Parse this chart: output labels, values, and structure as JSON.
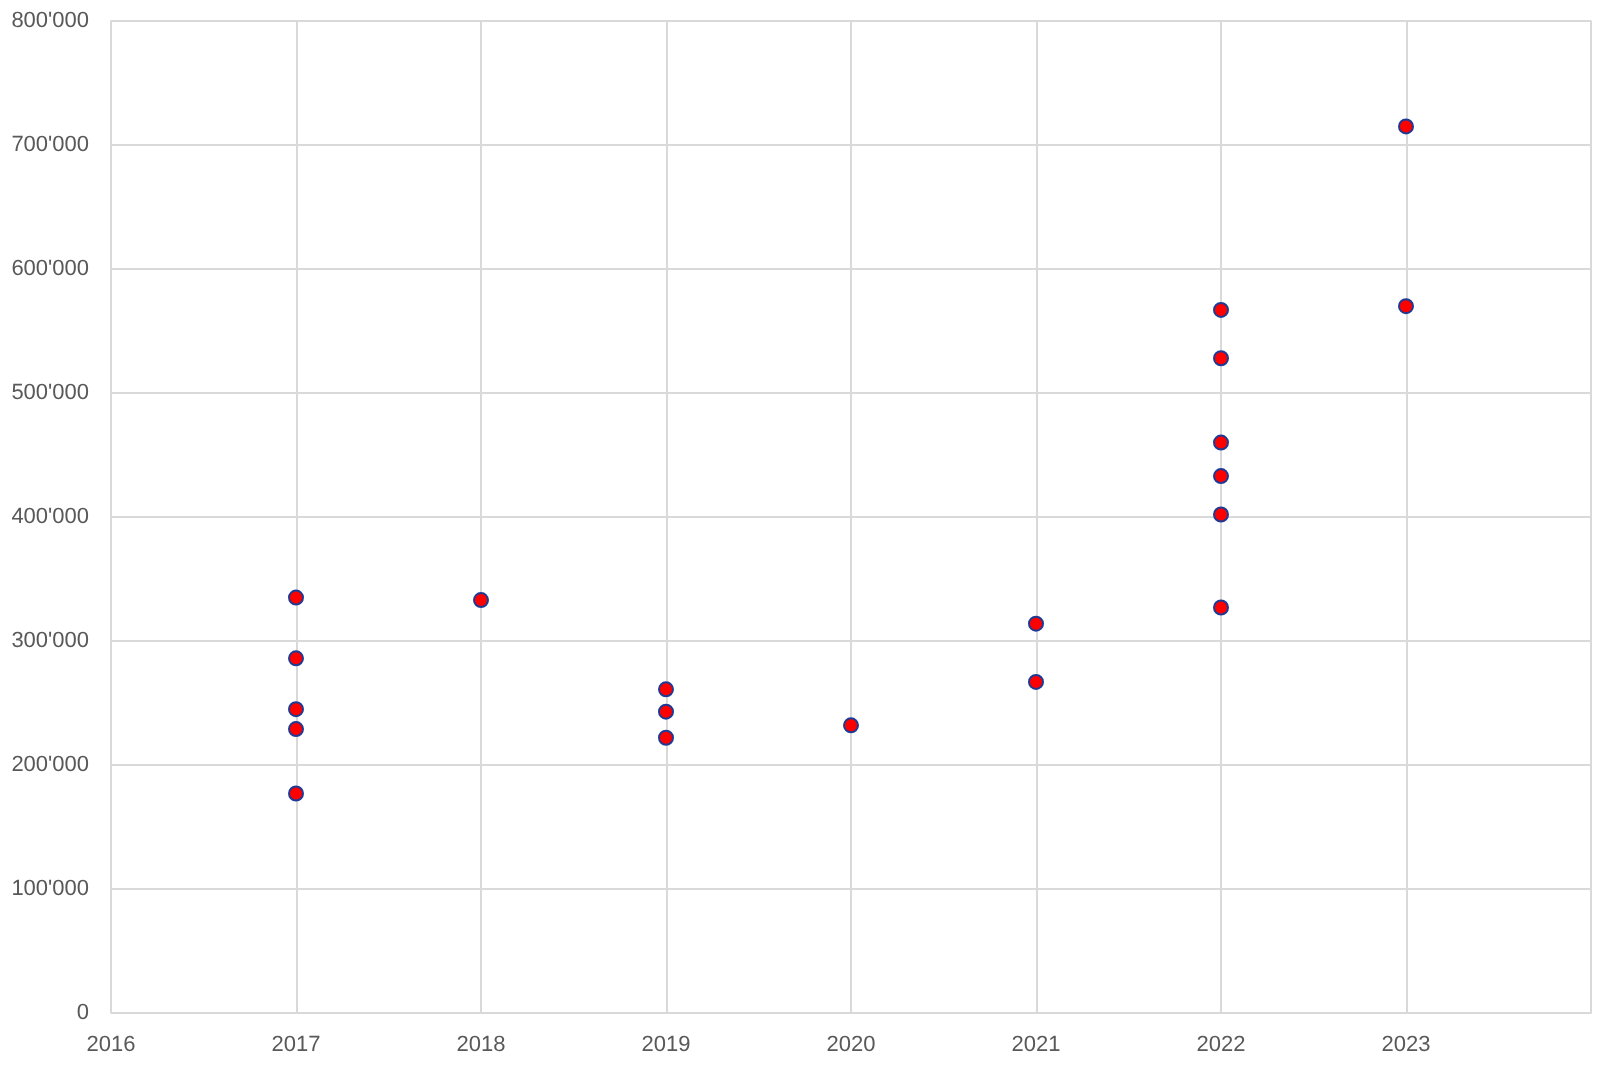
{
  "chart_data": {
    "type": "scatter",
    "marker": "circle",
    "grid": true,
    "x": [
      2017,
      2017,
      2017,
      2017,
      2017,
      2018,
      2019,
      2019,
      2019,
      2020,
      2021,
      2021,
      2022,
      2022,
      2022,
      2022,
      2022,
      2022,
      2023,
      2023
    ],
    "series": [
      {
        "color": "#ff0000",
        "values": [
          335000,
          286000,
          245000,
          229000,
          177000,
          333000,
          261000,
          243000,
          222000,
          232000,
          314000,
          267000,
          567000,
          528000,
          460000,
          433000,
          402000,
          327000,
          715000,
          570000
        ]
      }
    ],
    "xlim": [
      2016,
      2024
    ],
    "xticks": [
      2016,
      2017,
      2018,
      2019,
      2020,
      2021,
      2022,
      2023
    ],
    "ylim": [
      0,
      800000
    ],
    "yticks": [
      {
        "value": 0,
        "label": "0"
      },
      {
        "value": 100000,
        "label": "100'000"
      },
      {
        "value": 200000,
        "label": "200'000"
      },
      {
        "value": 300000,
        "label": "300'000"
      },
      {
        "value": 400000,
        "label": "400'000"
      },
      {
        "value": 500000,
        "label": "500'000"
      },
      {
        "value": 600000,
        "label": "600'000"
      },
      {
        "value": 700000,
        "label": "700'000"
      },
      {
        "value": 800000,
        "label": "800'000"
      }
    ]
  }
}
